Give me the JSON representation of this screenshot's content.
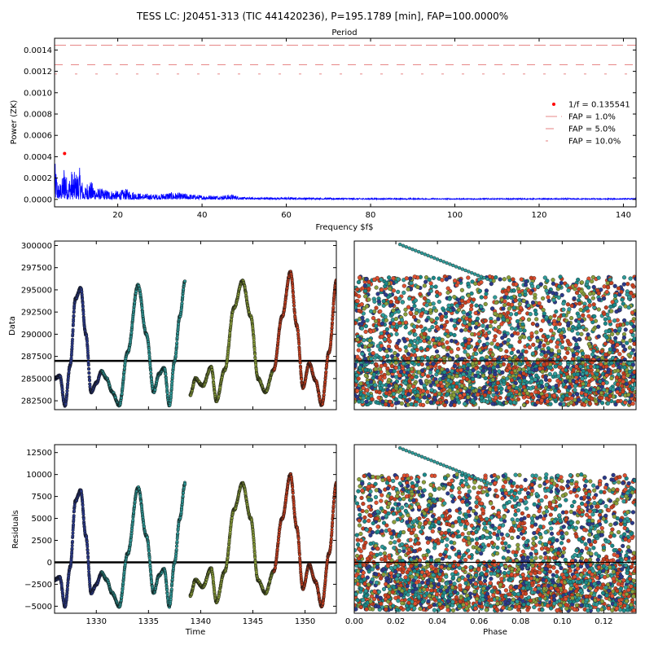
{
  "title": "TESS LC: J20451-313 (TIC 441420236), P=195.1789 [min], FAP=100.0000%",
  "chart_data": [
    {
      "type": "line",
      "panel": "periodogram",
      "top_label": "Period",
      "xlabel": "Frequency $f$",
      "ylabel": "Power (ZK)",
      "xlim": [
        5,
        143
      ],
      "ylim": [
        -7e-05,
        0.00151
      ],
      "xticks": [
        20,
        40,
        60,
        80,
        100,
        120,
        140
      ],
      "yticks": [
        "0.0000",
        "0.0002",
        "0.0004",
        "0.0006",
        "0.0008",
        "0.0010",
        "0.0012",
        "0.0014"
      ],
      "series_color": "#0000ff",
      "peak": {
        "x": 7.38,
        "y": 0.00043,
        "label": "1/f = 0.135541",
        "color": "#ff0000"
      },
      "spectrum_sample": {
        "x": [
          5,
          6,
          7,
          7.38,
          8,
          9,
          10,
          11,
          12,
          13,
          15,
          18,
          20,
          22,
          25,
          28,
          30,
          32,
          35,
          40,
          45,
          47,
          50,
          60,
          70,
          80,
          100,
          120,
          143
        ],
        "y": [
          0.00037,
          0.00014,
          0.00022,
          0.00043,
          0.00016,
          0.00028,
          0.00025,
          0.0003,
          8e-05,
          0.0002,
          0.00011,
          9e-05,
          8e-05,
          0.0001,
          6e-05,
          5e-05,
          5e-05,
          7e-05,
          6e-05,
          4e-05,
          4e-05,
          5e-05,
          2e-05,
          2e-05,
          1.5e-05,
          1.2e-05,
          1e-05,
          1e-05,
          1e-05
        ]
      },
      "fap_lines": [
        {
          "label": "FAP = 1.0%",
          "value": 0.001445,
          "color": "#e06060"
        },
        {
          "label": "FAP = 5.0%",
          "value": 0.001262,
          "color": "#e06060"
        },
        {
          "label": "FAP = 10.0%",
          "value": 0.001175,
          "color": "#e06060"
        }
      ],
      "legend": {
        "placement": "right",
        "entries": [
          "1/f = 0.135541",
          "FAP = 1.0%",
          "FAP = 5.0%",
          "FAP = 10.0%"
        ]
      }
    },
    {
      "type": "scatter",
      "panel": "data-vs-time",
      "xlabel": "",
      "ylabel": "Data",
      "xlim": [
        1326,
        1353
      ],
      "ylim": [
        281500,
        300500
      ],
      "yticks": [
        "282500",
        "285000",
        "287500",
        "290000",
        "292500",
        "295000",
        "297500",
        "300000"
      ],
      "mean_line": 287000,
      "segments": [
        {
          "t0": 1326.0,
          "t1": 1330.5,
          "color": "#2b3a8c",
          "t": [
            1326,
            1326.5,
            1327.0,
            1327.5,
            1328.0,
            1328.5,
            1329.0,
            1329.5,
            1330.0,
            1330.5
          ],
          "v": [
            285000,
            285300,
            282000,
            286500,
            294000,
            295200,
            290000,
            283500,
            284500,
            285800
          ]
        },
        {
          "t0": 1330.5,
          "t1": 1338.5,
          "color": "#2f9c9a",
          "t": [
            1330.5,
            1331.0,
            1331.5,
            1332.2,
            1333.0,
            1334.0,
            1334.8,
            1335.5,
            1336.0,
            1336.5,
            1337.0,
            1337.5,
            1338.0,
            1338.5
          ],
          "v": [
            285800,
            285000,
            283500,
            282000,
            288000,
            295500,
            290000,
            283500,
            285500,
            286200,
            282000,
            287000,
            292000,
            296000
          ]
        },
        {
          "t0": 1339.0,
          "t1": 1347.0,
          "color": "#8a9f3a",
          "t": [
            1339.0,
            1339.5,
            1340.2,
            1341.0,
            1341.5,
            1342.3,
            1343.2,
            1344.0,
            1344.8,
            1345.5,
            1346.2,
            1347.0
          ],
          "v": [
            283200,
            285000,
            284200,
            286300,
            282500,
            286000,
            293000,
            296000,
            292000,
            285000,
            283500,
            286000
          ]
        },
        {
          "t0": 1347.0,
          "t1": 1353.0,
          "color": "#c84020",
          "t": [
            1347.0,
            1347.8,
            1348.6,
            1349.2,
            1349.8,
            1350.4,
            1351.0,
            1351.6,
            1352.3,
            1353.0
          ],
          "v": [
            286000,
            292000,
            297000,
            291000,
            284000,
            286700,
            284800,
            282000,
            288000,
            296000
          ]
        }
      ]
    },
    {
      "type": "scatter",
      "panel": "data-vs-phase",
      "xlabel": "",
      "ylabel": "",
      "xlim": [
        0.0,
        0.1355
      ],
      "ylim": [
        281500,
        300500
      ],
      "colors": [
        "#2b3a8c",
        "#2f9c9a",
        "#8a9f3a",
        "#c84020",
        "#e05030",
        "#1a8a8a"
      ]
    },
    {
      "type": "scatter",
      "panel": "residuals-vs-time",
      "xlabel": "Time",
      "ylabel": "Residuals",
      "xlim": [
        1326,
        1353
      ],
      "ylim": [
        -5800,
        13400
      ],
      "xticks": [
        "1330",
        "1335",
        "1340",
        "1345",
        "1350"
      ],
      "yticks": [
        "-5000",
        "-2500",
        "0",
        "2500",
        "5000",
        "7500",
        "10000",
        "12500"
      ],
      "zero_line": 0,
      "segments": [
        {
          "t0": 1326.0,
          "t1": 1330.5,
          "color": "#2b3a8c",
          "t": [
            1326,
            1326.5,
            1327.0,
            1327.5,
            1328.0,
            1328.5,
            1329.0,
            1329.5,
            1330.0,
            1330.5
          ],
          "v": [
            -2000,
            -1700,
            -5000,
            -500,
            7000,
            8200,
            3000,
            -3500,
            -2500,
            -1200
          ]
        },
        {
          "t0": 1330.5,
          "t1": 1338.5,
          "color": "#2f9c9a",
          "t": [
            1330.5,
            1331.0,
            1331.5,
            1332.2,
            1333.0,
            1334.0,
            1334.8,
            1335.5,
            1336.0,
            1336.5,
            1337.0,
            1337.5,
            1338.0,
            1338.5
          ],
          "v": [
            -1200,
            -2000,
            -3500,
            -5000,
            1000,
            8500,
            3000,
            -3500,
            -1500,
            -800,
            -5000,
            0,
            5000,
            9000
          ]
        },
        {
          "t0": 1339.0,
          "t1": 1347.0,
          "color": "#8a9f3a",
          "t": [
            1339.0,
            1339.5,
            1340.2,
            1341.0,
            1341.5,
            1342.3,
            1343.2,
            1344.0,
            1344.8,
            1345.5,
            1346.2,
            1347.0
          ],
          "v": [
            -3800,
            -2000,
            -2800,
            -700,
            -4500,
            -1000,
            6000,
            9000,
            5000,
            -2000,
            -3500,
            -1000
          ]
        },
        {
          "t0": 1347.0,
          "t1": 1353.0,
          "color": "#c84020",
          "t": [
            1347.0,
            1347.8,
            1348.6,
            1349.2,
            1349.8,
            1350.4,
            1351.0,
            1351.6,
            1352.3,
            1353.0
          ],
          "v": [
            -1000,
            5000,
            10000,
            4000,
            -3000,
            -300,
            -2200,
            -5000,
            1000,
            9000
          ]
        }
      ]
    },
    {
      "type": "scatter",
      "panel": "residuals-vs-phase",
      "xlabel": "Phase",
      "ylabel": "",
      "xlim": [
        0.0,
        0.1355
      ],
      "ylim": [
        -5800,
        13400
      ],
      "xticks": [
        "0.00",
        "0.02",
        "0.04",
        "0.06",
        "0.08",
        "0.10",
        "0.12"
      ],
      "colors": [
        "#2b3a8c",
        "#2f9c9a",
        "#8a9f3a",
        "#c84020",
        "#e05030",
        "#1a8a8a"
      ]
    }
  ]
}
